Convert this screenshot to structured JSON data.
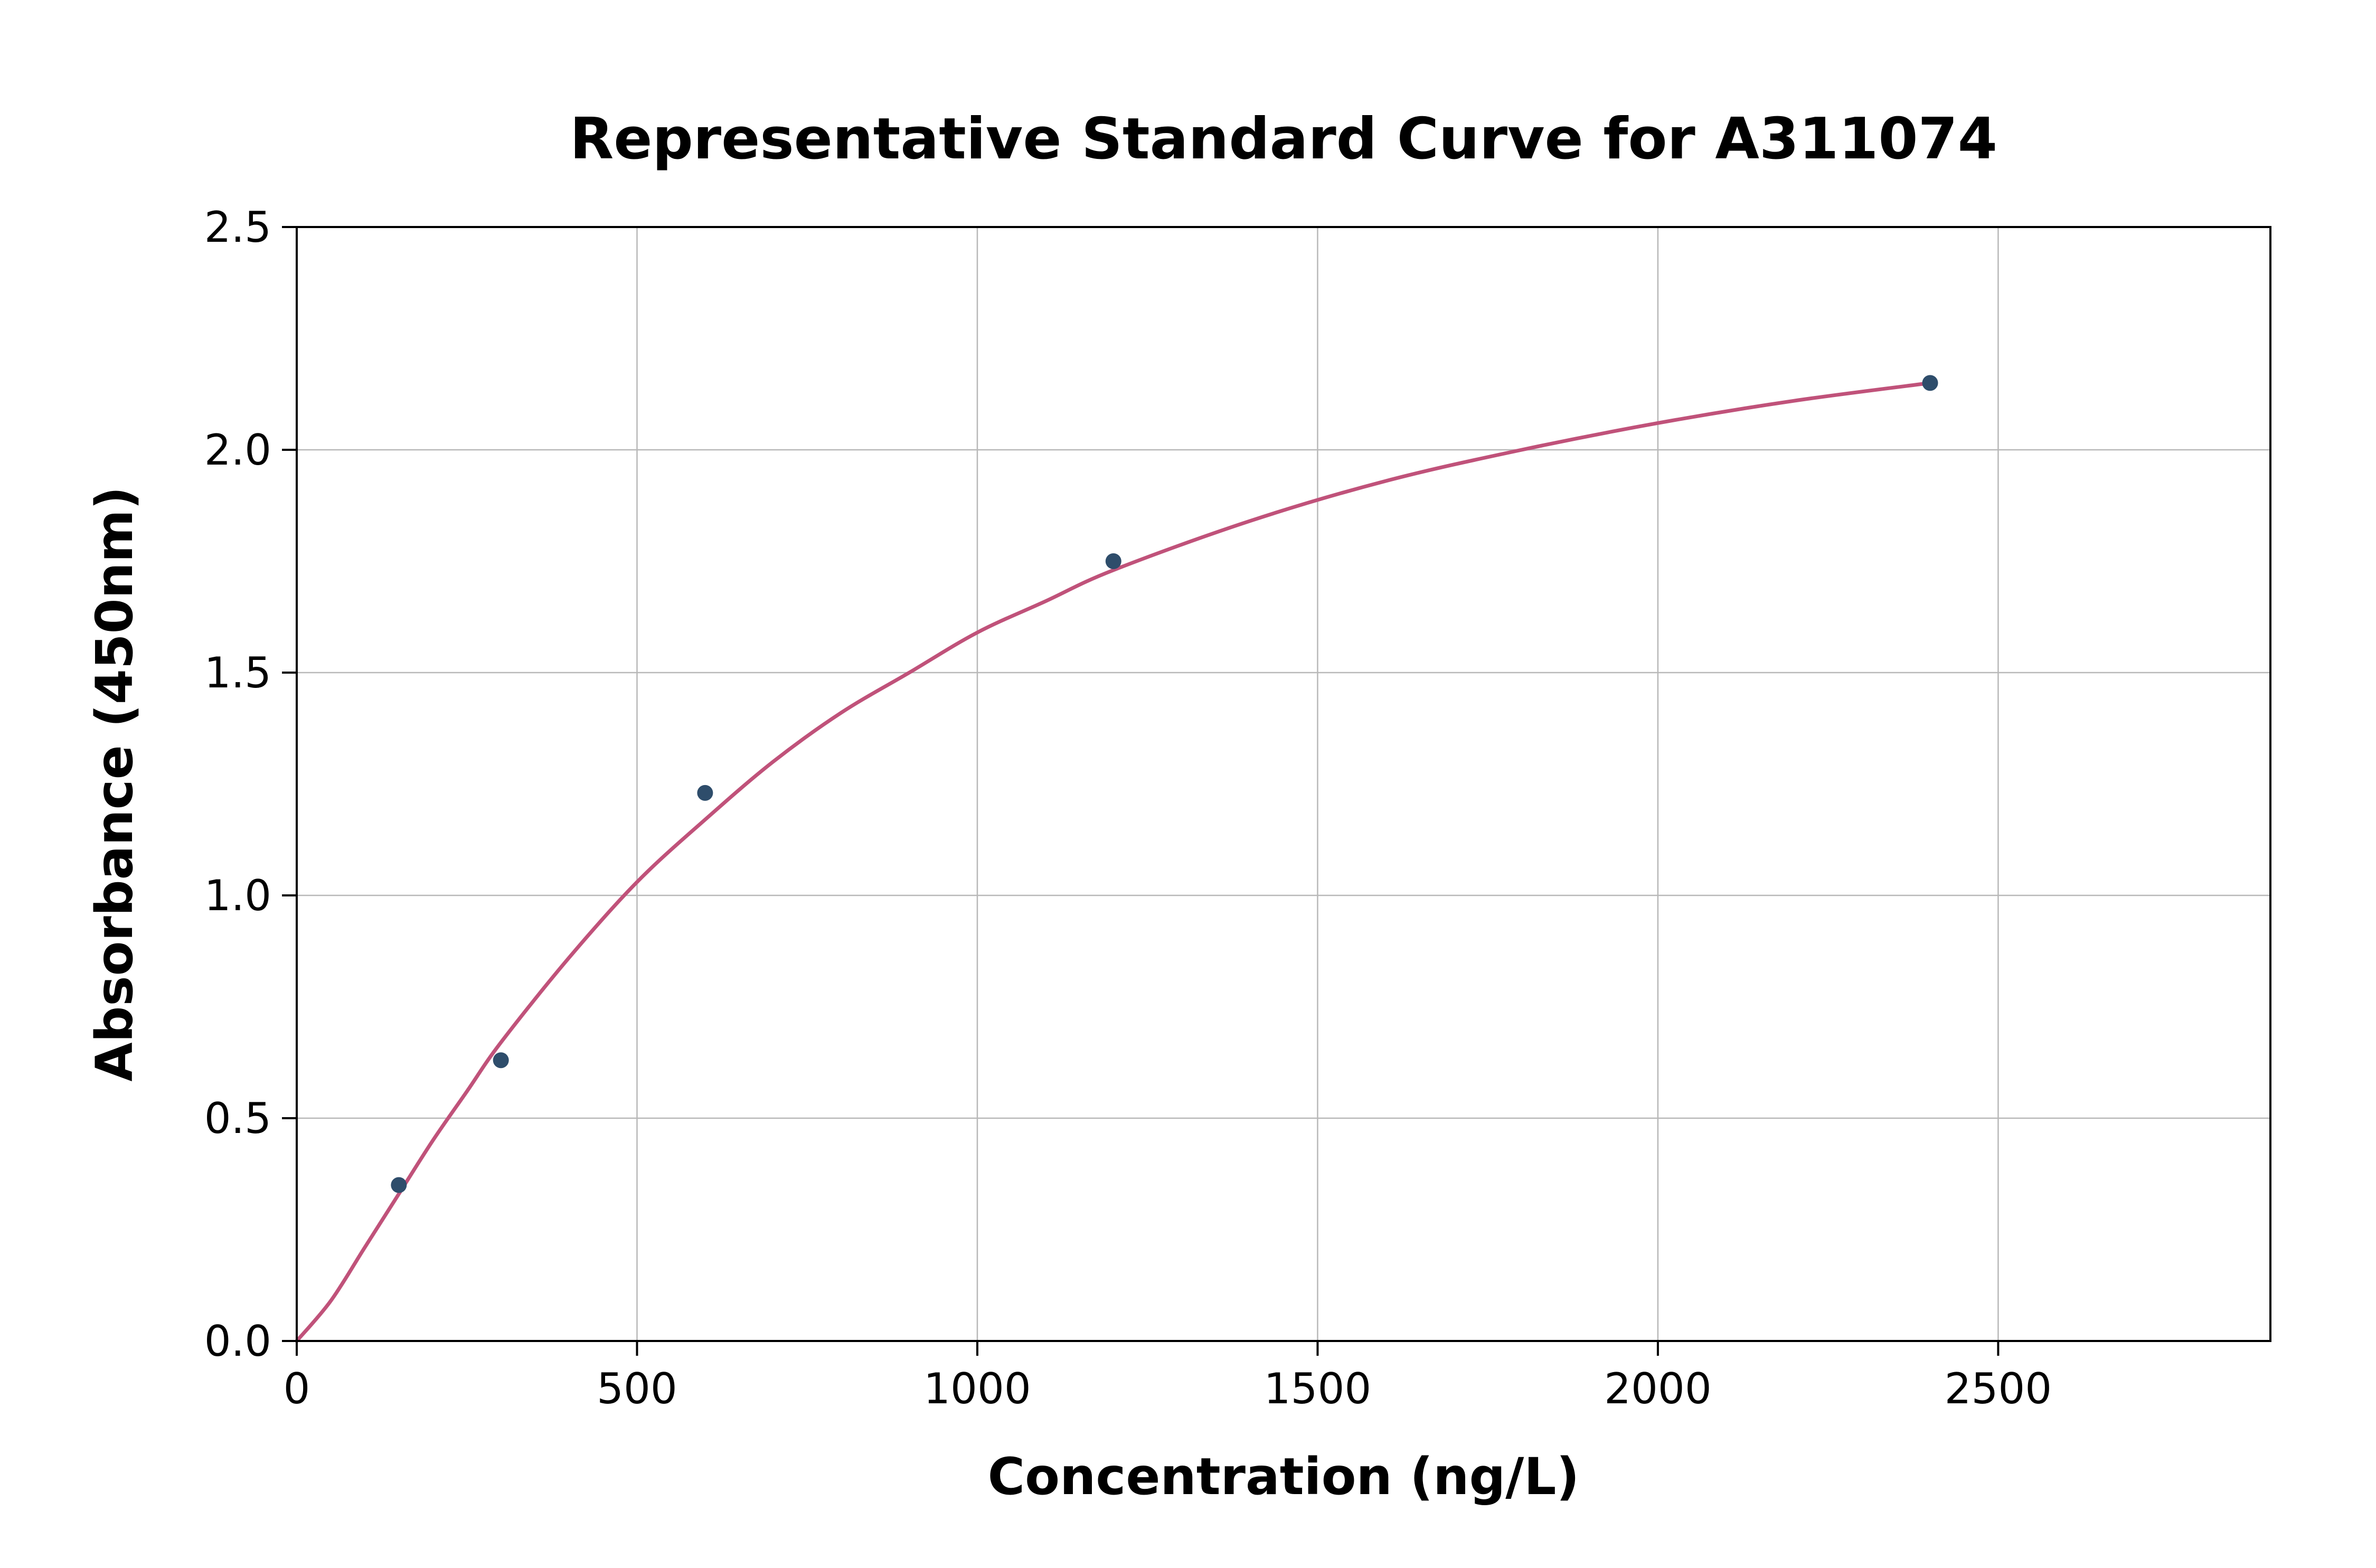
{
  "chart_data": {
    "type": "scatter",
    "title": "Representative Standard Curve for A311074",
    "xlabel": "Concentration (ng/L)",
    "ylabel": "Absorbance (450nm)",
    "xlim": [
      0,
      2900
    ],
    "ylim": [
      0,
      2.5
    ],
    "x_ticks": [
      0,
      500,
      1000,
      1500,
      2000,
      2500
    ],
    "x_tick_labels": [
      "0",
      "500",
      "1000",
      "1500",
      "2000",
      "2500"
    ],
    "y_ticks": [
      0.0,
      0.5,
      1.0,
      1.5,
      2.0,
      2.5
    ],
    "y_tick_labels": [
      "0.0",
      "0.5",
      "1.0",
      "1.5",
      "2.0",
      "2.5"
    ],
    "grid": true,
    "legend": "none",
    "series": [
      {
        "name": "standard-points",
        "type": "scatter",
        "x": [
          150,
          300,
          600,
          1200,
          2400
        ],
        "y": [
          0.35,
          0.63,
          1.23,
          1.75,
          2.15
        ]
      },
      {
        "name": "fitted-curve",
        "type": "line",
        "x": [
          0,
          50,
          100,
          150,
          200,
          250,
          300,
          400,
          500,
          600,
          700,
          800,
          900,
          1000,
          1100,
          1200,
          1400,
          1600,
          1800,
          2000,
          2200,
          2400
        ],
        "y": [
          0.0,
          0.09,
          0.21,
          0.33,
          0.45,
          0.56,
          0.67,
          0.86,
          1.03,
          1.17,
          1.3,
          1.41,
          1.5,
          1.59,
          1.66,
          1.73,
          1.84,
          1.93,
          2.0,
          2.06,
          2.11,
          2.15
        ]
      }
    ],
    "colors": {
      "curve": "#c0527a",
      "points": "#2e4d6b",
      "grid": "#b8b8b8",
      "spine": "#000000",
      "background": "#ffffff"
    }
  }
}
